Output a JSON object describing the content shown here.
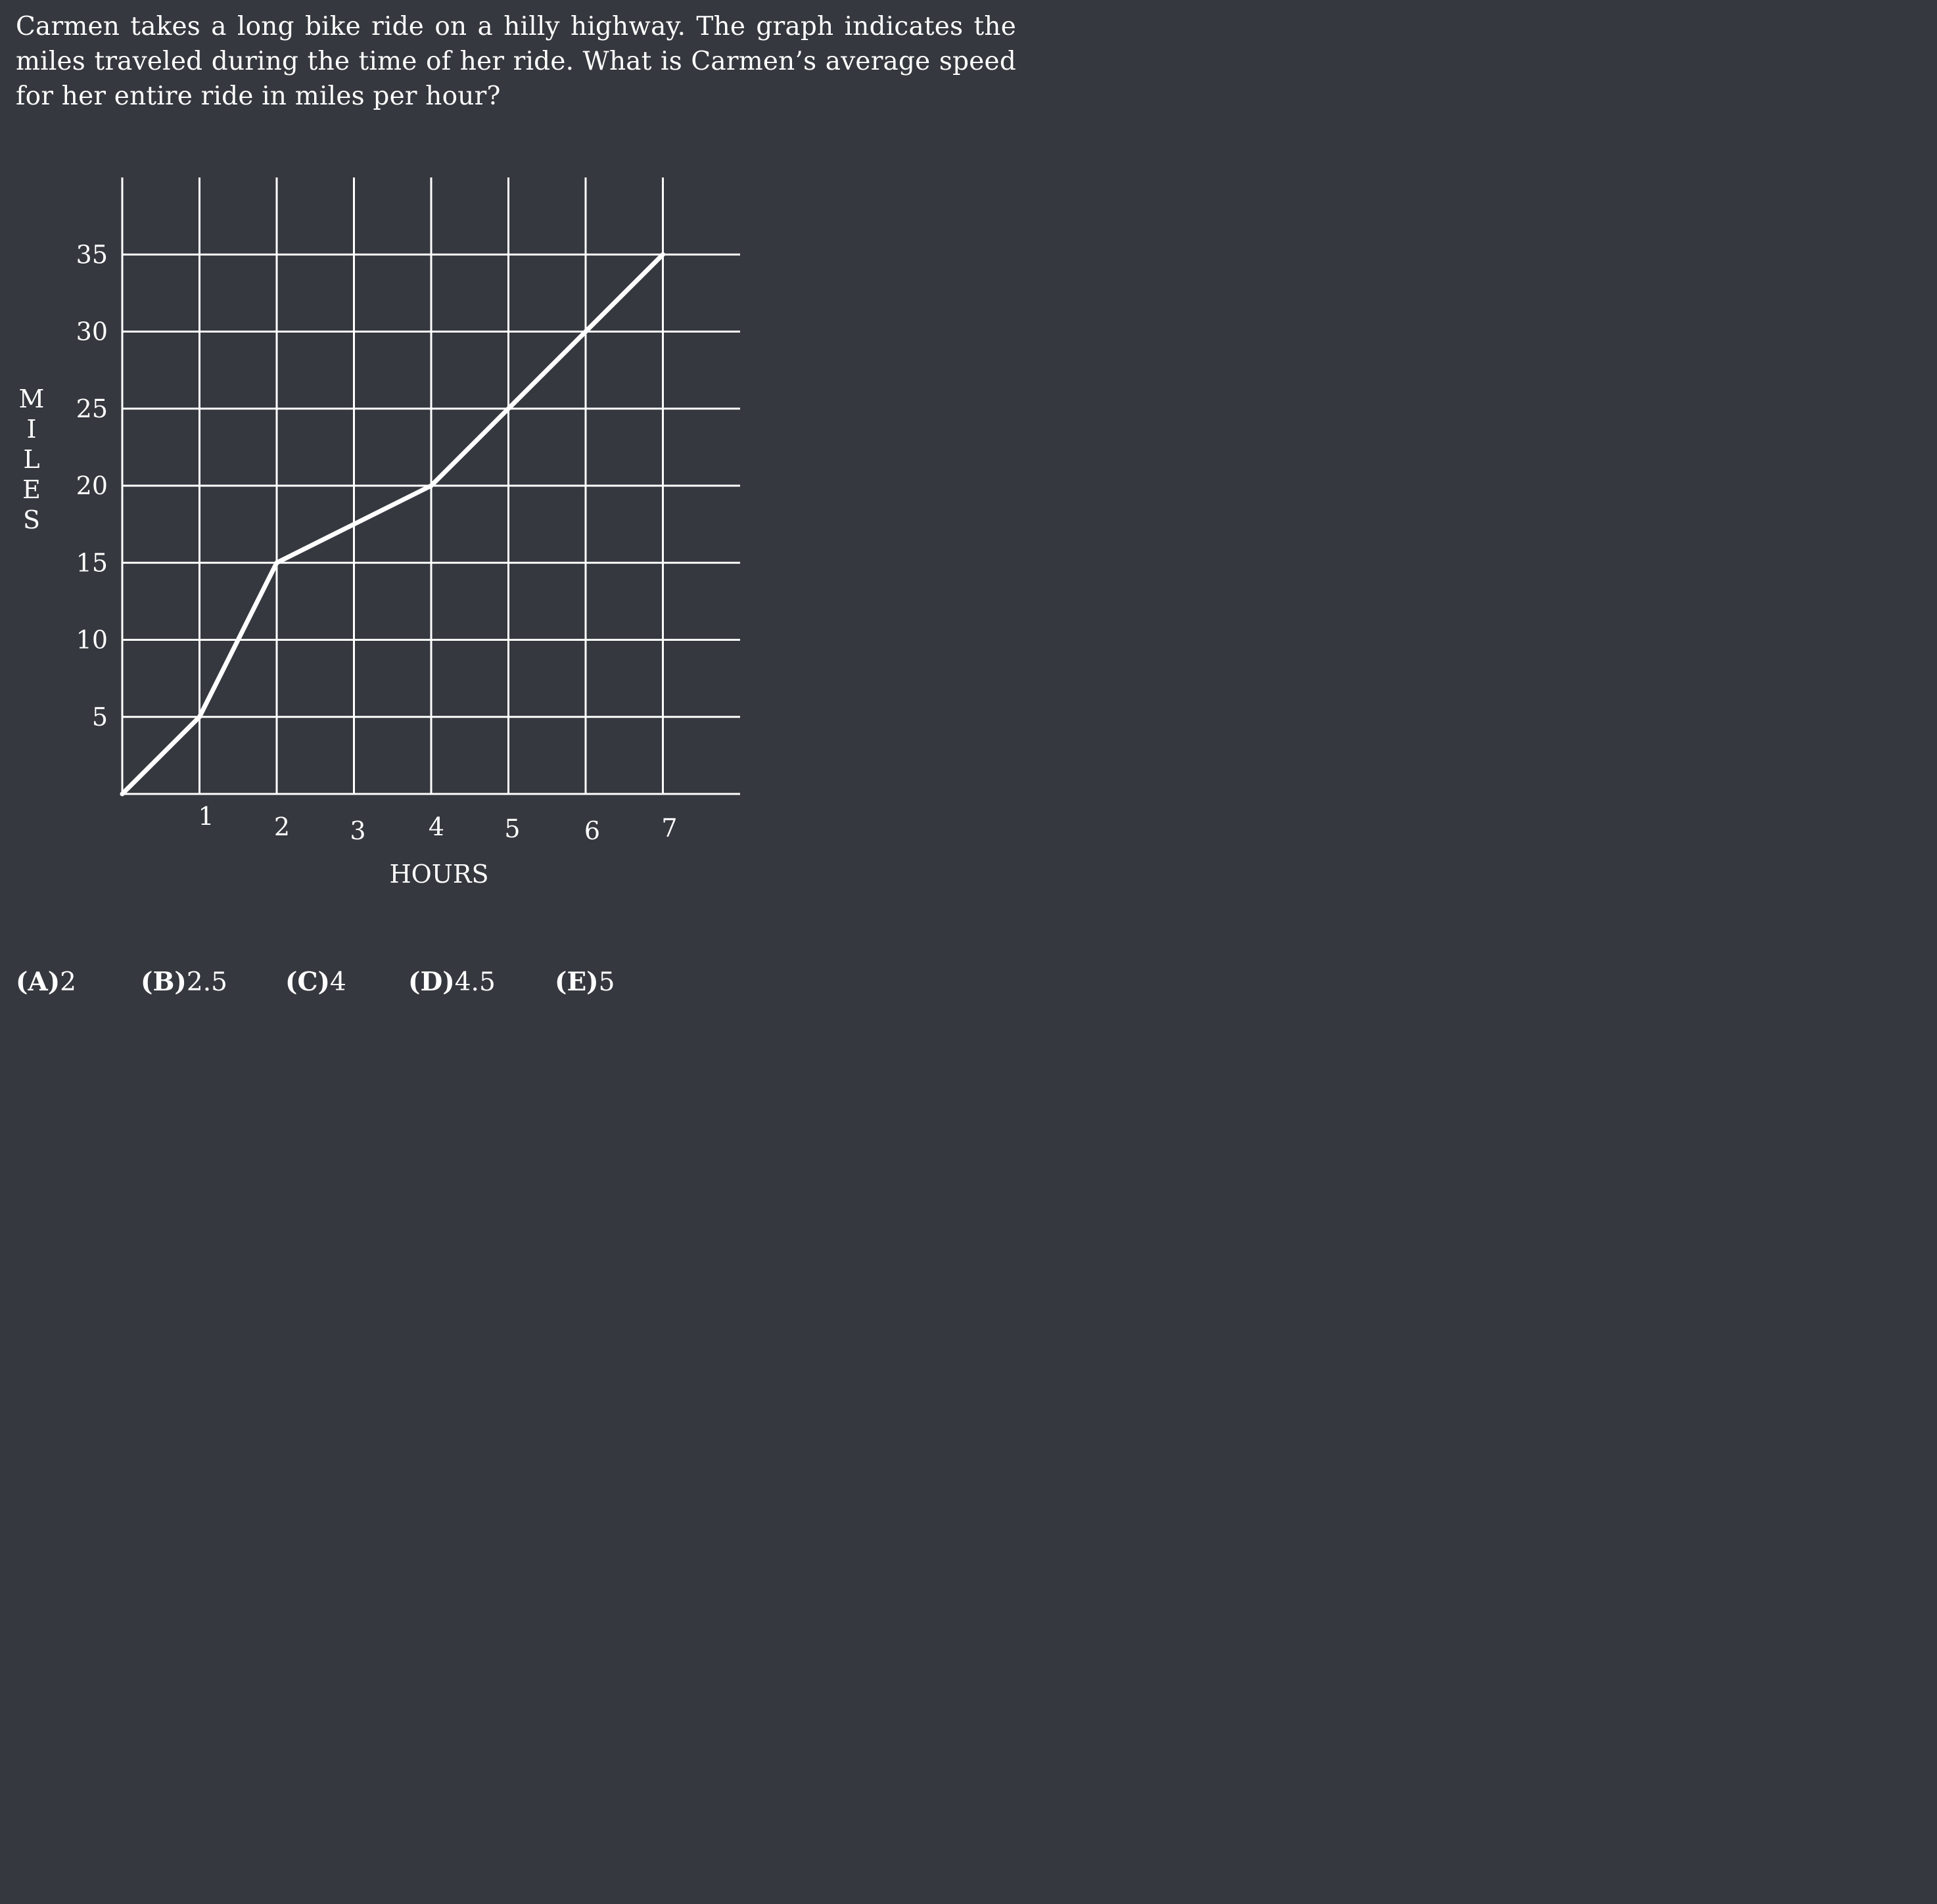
{
  "question": {
    "text": "Carmen takes a long bike ride on a hilly highway.  The graph indicates the miles traveled during the time of her ride. What is Carmen’s average speed for her entire ride in miles per hour?"
  },
  "chart_data": {
    "type": "line",
    "title": "",
    "xlabel": "HOURS",
    "ylabel": "MILES",
    "xlim": [
      0,
      8
    ],
    "ylim": [
      0,
      40
    ],
    "x_ticks": [
      1,
      2,
      3,
      4,
      5,
      6,
      7
    ],
    "y_ticks": [
      5,
      10,
      15,
      20,
      25,
      30,
      35
    ],
    "grid": true,
    "series": [
      {
        "x": [
          0,
          1,
          2,
          3,
          4,
          5,
          6,
          7
        ],
        "y": [
          0,
          5,
          15,
          17.5,
          20,
          25,
          30,
          35
        ]
      }
    ]
  },
  "choices": [
    {
      "letter": "(A)",
      "value": "2"
    },
    {
      "letter": "(B)",
      "value": "2.5"
    },
    {
      "letter": "(C)",
      "value": "4"
    },
    {
      "letter": "(D)",
      "value": "4.5"
    },
    {
      "letter": "(E)",
      "value": "5"
    }
  ],
  "colors": {
    "background": "#35383e",
    "foreground": "#ffffff"
  }
}
